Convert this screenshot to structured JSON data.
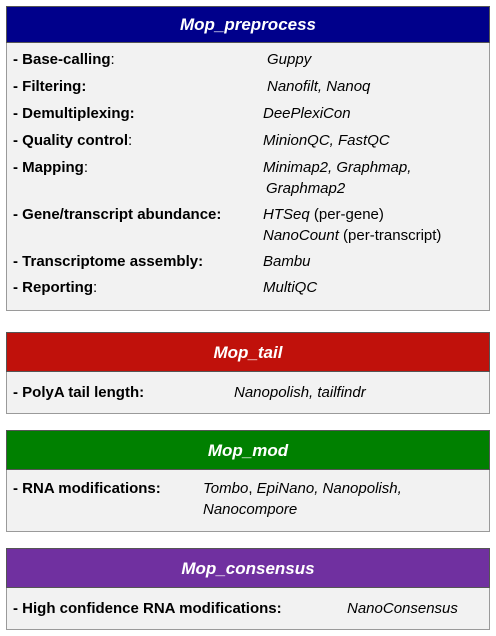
{
  "colors": {
    "preprocess_header": "#00008b",
    "tail_header": "#c0110b",
    "mod_header": "#008000",
    "consensus_header": "#7030a0",
    "panel_bg": "#f2f2f2"
  },
  "preprocess": {
    "title": "Mop_preprocess",
    "rows": [
      {
        "label": "- Base-calling",
        "sep": ":",
        "tools": "Guppy"
      },
      {
        "label": "- Filtering:",
        "sep": "",
        "tools": "Nanofilt, Nanoq"
      },
      {
        "label": "- Demultiplexing:",
        "sep": "",
        "tools": "DeePlexiCon"
      },
      {
        "label": "- Quality control",
        "sep": ":",
        "tools": "MinionQC, FastQC"
      },
      {
        "label": "- Mapping",
        "sep": ":",
        "tools": "Minimap2, Graphmap,",
        "tools2": "Graphmap2"
      },
      {
        "label": "- Gene/transcript abundance:",
        "sep": "",
        "tools": "HTSeq",
        "note": " (per-gene)",
        "tools2": "NanoCount",
        "note2": " (per-transcript)"
      },
      {
        "label": "- Transcriptome assembly:",
        "sep": "",
        "tools": "Bambu"
      },
      {
        "label": "- Reporting",
        "sep": ":",
        "tools": "MultiQC"
      }
    ]
  },
  "tail": {
    "title": "Mop_tail",
    "rows": [
      {
        "label": "- PolyA tail length:",
        "tools": "Nanopolish, tailfindr"
      }
    ]
  },
  "mod": {
    "title": "Mop_mod",
    "rows": [
      {
        "label": "- RNA modifications:",
        "tools_a": "Tombo",
        "tools_b": ", ",
        "tools_c": "EpiNano, Nanopolish,",
        "tools2": "Nanocompore"
      }
    ]
  },
  "consensus": {
    "title": "Mop_consensus",
    "rows": [
      {
        "label": "- High confidence RNA modifications:",
        "tools": "NanoConsensus"
      }
    ]
  }
}
